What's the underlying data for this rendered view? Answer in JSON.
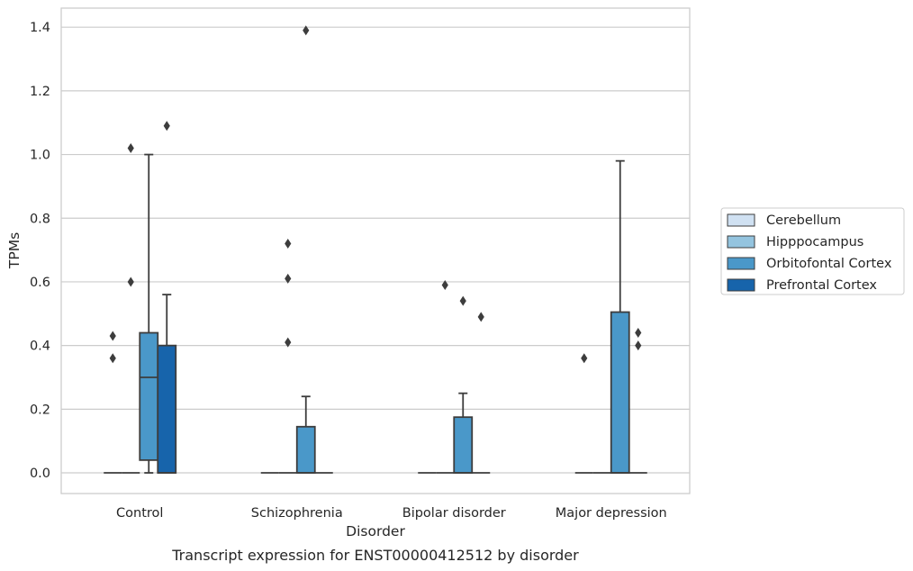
{
  "caption": "Transcript expression for ENST00000412512 by disorder",
  "chart_data": {
    "type": "box",
    "xlabel": "Disorder",
    "ylabel": "TPMs",
    "ylim": [
      -0.065,
      1.46
    ],
    "yticks": [
      0.0,
      0.2,
      0.4,
      0.6,
      0.8,
      1.0,
      1.2,
      1.4
    ],
    "ytick_labels": [
      "0.0",
      "0.2",
      "0.4",
      "0.6",
      "0.8",
      "1.0",
      "1.2",
      "1.4"
    ],
    "grid": "horizontal",
    "legend_placement": "right, outside plot",
    "categories": [
      "Control",
      "Schizophrenia",
      "Bipolar disorder",
      "Major depression"
    ],
    "series": [
      {
        "name": "Cerebellum",
        "color": "#d0e1f2",
        "boxes": [
          {
            "q1": 0,
            "median": 0,
            "q3": 0,
            "whislo": 0,
            "whishi": 0,
            "fliers": [
              0.43,
              0.36
            ]
          },
          {
            "q1": 0,
            "median": 0,
            "q3": 0,
            "whislo": 0,
            "whishi": 0,
            "fliers": []
          },
          {
            "q1": 0,
            "median": 0,
            "q3": 0,
            "whislo": 0,
            "whishi": 0,
            "fliers": []
          },
          {
            "q1": 0,
            "median": 0,
            "q3": 0,
            "whislo": 0,
            "whishi": 0,
            "fliers": [
              0.36
            ]
          }
        ]
      },
      {
        "name": "Hipppocampus",
        "color": "#94c4df",
        "boxes": [
          {
            "q1": 0,
            "median": 0,
            "q3": 0,
            "whislo": 0,
            "whishi": 0,
            "fliers": [
              1.02,
              0.6
            ]
          },
          {
            "q1": 0,
            "median": 0,
            "q3": 0,
            "whislo": 0,
            "whishi": 0,
            "fliers": [
              0.72,
              0.61,
              0.41
            ]
          },
          {
            "q1": 0,
            "median": 0,
            "q3": 0,
            "whislo": 0,
            "whishi": 0,
            "fliers": [
              0.59
            ]
          },
          {
            "q1": 0,
            "median": 0,
            "q3": 0,
            "whislo": 0,
            "whishi": 0,
            "fliers": []
          }
        ]
      },
      {
        "name": "Orbitofontal Cortex",
        "color": "#4a98c9",
        "boxes": [
          {
            "q1": 0.04,
            "median": 0.3,
            "q3": 0.44,
            "whislo": 0,
            "whishi": 1.0,
            "fliers": []
          },
          {
            "q1": 0,
            "median": 0,
            "q3": 0.145,
            "whislo": 0,
            "whishi": 0.24,
            "fliers": [
              1.39
            ]
          },
          {
            "q1": 0,
            "median": 0,
            "q3": 0.175,
            "whislo": 0,
            "whishi": 0.25,
            "fliers": [
              0.54
            ]
          },
          {
            "q1": 0,
            "median": 0,
            "q3": 0.505,
            "whislo": 0,
            "whishi": 0.98,
            "fliers": []
          }
        ]
      },
      {
        "name": "Prefrontal Cortex",
        "color": "#1764ab",
        "boxes": [
          {
            "q1": 0,
            "median": 0,
            "q3": 0.4,
            "whislo": 0,
            "whishi": 0.56,
            "fliers": [
              1.09
            ]
          },
          {
            "q1": 0,
            "median": 0,
            "q3": 0,
            "whislo": 0,
            "whishi": 0,
            "fliers": []
          },
          {
            "q1": 0,
            "median": 0,
            "q3": 0,
            "whislo": 0,
            "whishi": 0,
            "fliers": [
              0.49
            ]
          },
          {
            "q1": 0,
            "median": 0,
            "q3": 0,
            "whislo": 0,
            "whishi": 0,
            "fliers": [
              0.44,
              0.4
            ]
          }
        ]
      }
    ]
  }
}
